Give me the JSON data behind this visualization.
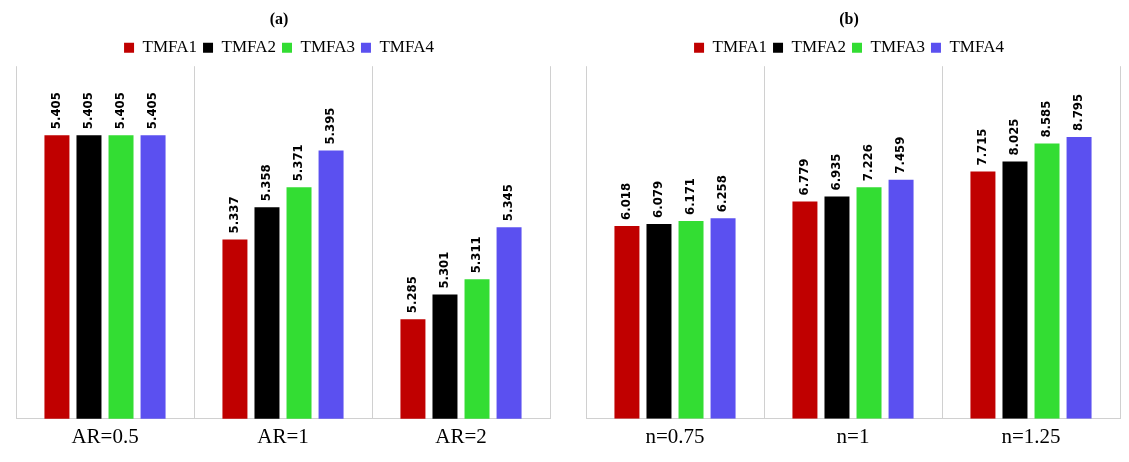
{
  "chart_data": [
    {
      "type": "bar",
      "title": "(a)",
      "categories": [
        "AR=0.5",
        "AR=1",
        "AR=2"
      ],
      "series": [
        {
          "name": "TMFA1",
          "color": "#c00000",
          "values": [
            5.405,
            5.337,
            5.285
          ]
        },
        {
          "name": "TMFA2",
          "color": "#000000",
          "values": [
            5.405,
            5.358,
            5.301
          ]
        },
        {
          "name": "TMFA3",
          "color": "#33dd33",
          "values": [
            5.405,
            5.371,
            5.311
          ]
        },
        {
          "name": "TMFA4",
          "color": "#5b50f0",
          "values": [
            5.405,
            5.395,
            5.345
          ]
        }
      ],
      "ylim": [
        5.22,
        5.45
      ],
      "tick_labels": "x",
      "grid": "x",
      "legend": "top",
      "data_labels": true
    },
    {
      "type": "bar",
      "title": "(b)",
      "categories": [
        "n=0.75",
        "n=1",
        "n=1.25"
      ],
      "series": [
        {
          "name": "TMFA1",
          "color": "#c00000",
          "values": [
            6.018,
            6.779,
            7.715
          ]
        },
        {
          "name": "TMFA2",
          "color": "#000000",
          "values": [
            6.079,
            6.935,
            8.025
          ]
        },
        {
          "name": "TMFA3",
          "color": "#33dd33",
          "values": [
            6.171,
            7.226,
            8.585
          ]
        },
        {
          "name": "TMFA4",
          "color": "#5b50f0",
          "values": [
            6.258,
            7.459,
            8.795
          ]
        }
      ],
      "ylim": [
        0,
        11
      ],
      "tick_labels": "x",
      "grid": "x",
      "legend": "top",
      "data_labels": true
    }
  ]
}
